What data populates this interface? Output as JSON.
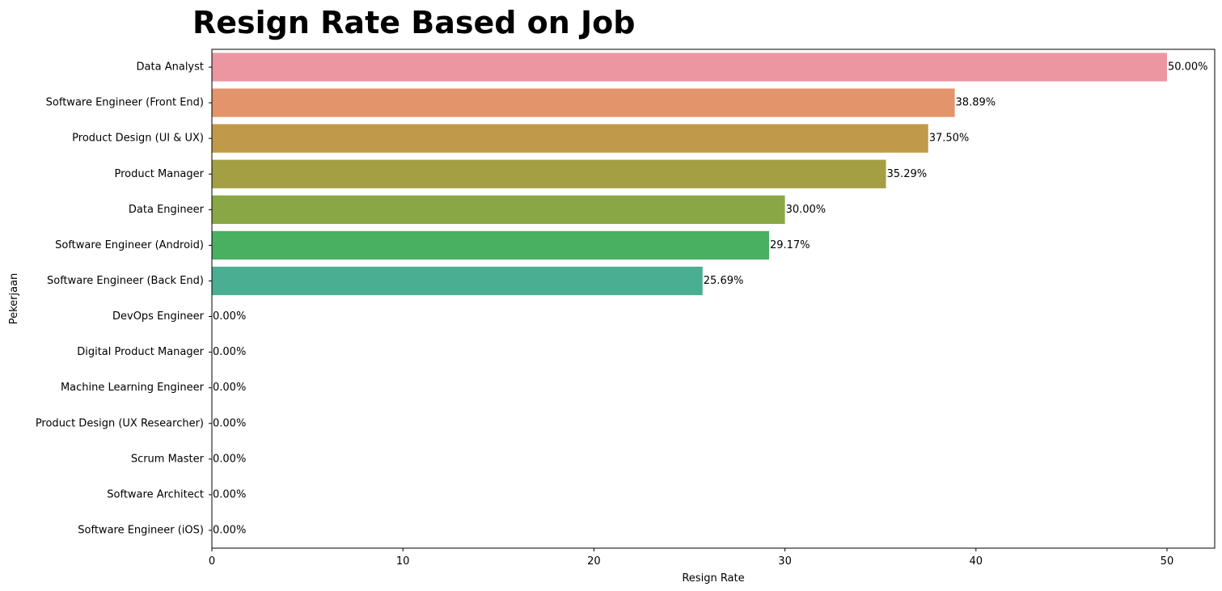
{
  "chart_data": {
    "type": "bar",
    "orientation": "horizontal",
    "title": "Resign Rate Based on Job",
    "xlabel": "Resign Rate",
    "ylabel": "Pekerjaan",
    "xlim": [
      0,
      52.5
    ],
    "xticks": [
      0,
      10,
      20,
      30,
      40,
      50
    ],
    "grid": false,
    "categories": [
      "Data Analyst",
      "Software Engineer (Front End)",
      "Product Design (UI & UX)",
      "Product Manager",
      "Data Engineer",
      "Software Engineer (Android)",
      "Software Engineer (Back End)",
      "DevOps Engineer",
      "Digital Product Manager",
      "Machine Learning Engineer",
      "Product Design (UX Researcher)",
      "Scrum Master",
      "Software Architect",
      "Software Engineer (iOS)"
    ],
    "values": [
      50.0,
      38.89,
      37.5,
      35.29,
      30.0,
      29.17,
      25.69,
      0,
      0,
      0,
      0,
      0,
      0,
      0
    ],
    "data_labels": [
      "50.00%",
      "38.89%",
      "37.50%",
      "35.29%",
      "30.00%",
      "29.17%",
      "25.69%",
      "0.00%",
      "0.00%",
      "0.00%",
      "0.00%",
      "0.00%",
      "0.00%",
      "0.00%"
    ],
    "colors": [
      "#ec96a1",
      "#e4946a",
      "#c09a4a",
      "#a59f44",
      "#89a845",
      "#48b060",
      "#4aae93",
      "#4aaeae",
      "#4cabc3",
      "#5ba7e0",
      "#a4a0ee",
      "#d18ff0",
      "#ee89d6",
      "#f08fb8"
    ]
  }
}
